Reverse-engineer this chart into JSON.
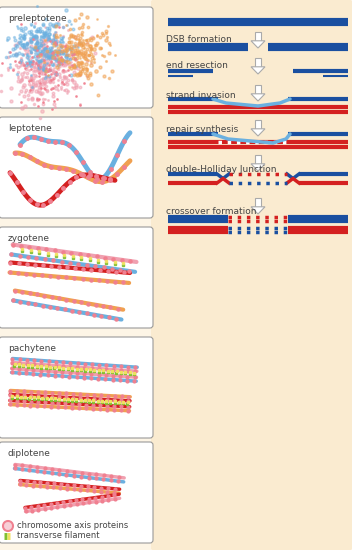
{
  "bg_color": "#fdf5e6",
  "right_bg": "#faebd0",
  "panel_labels": [
    "preleptotene",
    "leptotene",
    "zygotene",
    "pachytene",
    "diplotene"
  ],
  "right_labels": [
    "DSB formation",
    "end resection",
    "strand invasion",
    "repair synthesis",
    "double-Holliday Junction",
    "crossover formation"
  ],
  "blue": "#1a4fa0",
  "red": "#d42020",
  "light_blue": "#6ab0e0",
  "pink": "#f0a0b0",
  "orange": "#f0a050",
  "yellow": "#f0e060",
  "green": "#80c030",
  "axis_pink": "#f08090",
  "panel_border": "#999999",
  "arrow_color": "#aaaaaa",
  "text_color": "#444444",
  "figw": 3.52,
  "figh": 5.5,
  "dpi": 100
}
